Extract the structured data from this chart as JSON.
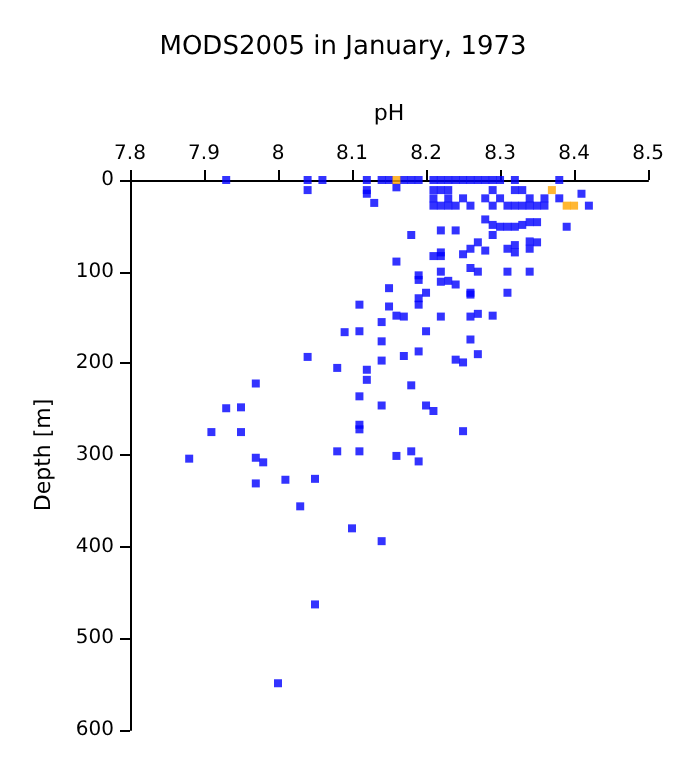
{
  "chart_data": {
    "type": "scatter",
    "title": "MODS2005 in January, 1973",
    "xlabel": "pH",
    "ylabel": "Depth [m]",
    "xlim": [
      7.8,
      8.5
    ],
    "xticks": [
      7.8,
      7.9,
      8,
      8.1,
      8.2,
      8.3,
      8.4,
      8.5
    ],
    "ylim": [
      600,
      0
    ],
    "yticks": [
      0,
      100,
      200,
      300,
      400,
      500,
      600
    ],
    "grid": false,
    "marker": "square",
    "series": [
      {
        "color": "#0000ff",
        "x": [
          7.93,
          8.04,
          8.06,
          8.12,
          8.14,
          8.15,
          8.17,
          8.18,
          8.19,
          8.21,
          8.22,
          8.23,
          8.24,
          8.25,
          8.26,
          8.27,
          8.28,
          8.29,
          8.3,
          8.32,
          8.38,
          8.04,
          8.12,
          8.16,
          8.21,
          8.22,
          8.23,
          8.29,
          8.32,
          8.33,
          8.12,
          8.13,
          8.21,
          8.23,
          8.25,
          8.28,
          8.3,
          8.34,
          8.36,
          8.38,
          8.41,
          8.21,
          8.22,
          8.23,
          8.24,
          8.26,
          8.29,
          8.31,
          8.32,
          8.33,
          8.34,
          8.35,
          8.36,
          8.42,
          8.18,
          8.22,
          8.24,
          8.28,
          8.29,
          8.3,
          8.31,
          8.32,
          8.33,
          8.34,
          8.35,
          8.39,
          8.27,
          8.29,
          8.28,
          8.26,
          8.25,
          8.22,
          8.22,
          8.21,
          8.31,
          8.32,
          8.32,
          8.34,
          8.35,
          8.34,
          8.16,
          8.19,
          8.19,
          8.22,
          8.26,
          8.27,
          8.31,
          8.34,
          8.22,
          8.23,
          8.24,
          8.15,
          8.2,
          8.26,
          8.26,
          8.31,
          8.19,
          8.19,
          8.15,
          8.11,
          8.14,
          8.16,
          8.17,
          8.22,
          8.26,
          8.27,
          8.29,
          8.09,
          8.11,
          8.2,
          8.14,
          8.26,
          8.04,
          8.17,
          8.19,
          8.27,
          8.24,
          8.25,
          8.14,
          8.08,
          8.12,
          8.12,
          7.97,
          8.11,
          8.18,
          8.14,
          8.2,
          8.21,
          7.93,
          7.95,
          7.91,
          7.95,
          8.11,
          8.11,
          8.25,
          8.08,
          8.11,
          8.18,
          8.16,
          8.19,
          7.88,
          7.97,
          7.98,
          7.97,
          8.01,
          8.05,
          8.03,
          8.1,
          8.14,
          8.05,
          8
        ],
        "values": [
          0,
          0,
          0,
          0,
          0,
          0,
          0,
          0,
          0,
          0,
          0,
          0,
          0,
          0,
          0,
          0,
          0,
          0,
          0,
          0,
          0,
          11,
          11,
          8,
          11,
          11,
          11,
          11,
          11,
          11,
          15,
          25,
          20,
          20,
          20,
          20,
          20,
          20,
          20,
          20,
          15,
          28,
          28,
          28,
          28,
          28,
          28,
          28,
          28,
          28,
          28,
          28,
          28,
          28,
          60,
          55,
          55,
          43,
          49,
          51,
          51,
          51,
          49,
          46,
          46,
          51,
          68,
          60,
          77,
          75,
          81,
          79,
          83,
          83,
          75,
          71,
          79,
          67,
          68,
          75,
          89,
          104,
          109,
          100,
          96,
          100,
          100,
          100,
          111,
          110,
          114,
          118,
          123,
          123,
          125,
          123,
          129,
          136,
          138,
          136,
          155,
          148,
          149,
          149,
          149,
          146,
          148,
          166,
          165,
          165,
          176,
          174,
          193,
          192,
          187,
          190,
          196,
          199,
          197,
          205,
          207,
          218,
          222,
          236,
          224,
          246,
          246,
          252,
          249,
          248,
          275,
          275,
          267,
          272,
          274,
          296,
          296,
          296,
          301,
          307,
          304,
          303,
          308,
          331,
          327,
          326,
          356,
          380,
          394,
          463,
          549
        ]
      },
      {
        "color": "#ffa500",
        "x": [
          8.16,
          8.37,
          8.39,
          8.4
        ],
        "values": [
          0,
          11,
          28,
          28
        ]
      }
    ]
  }
}
